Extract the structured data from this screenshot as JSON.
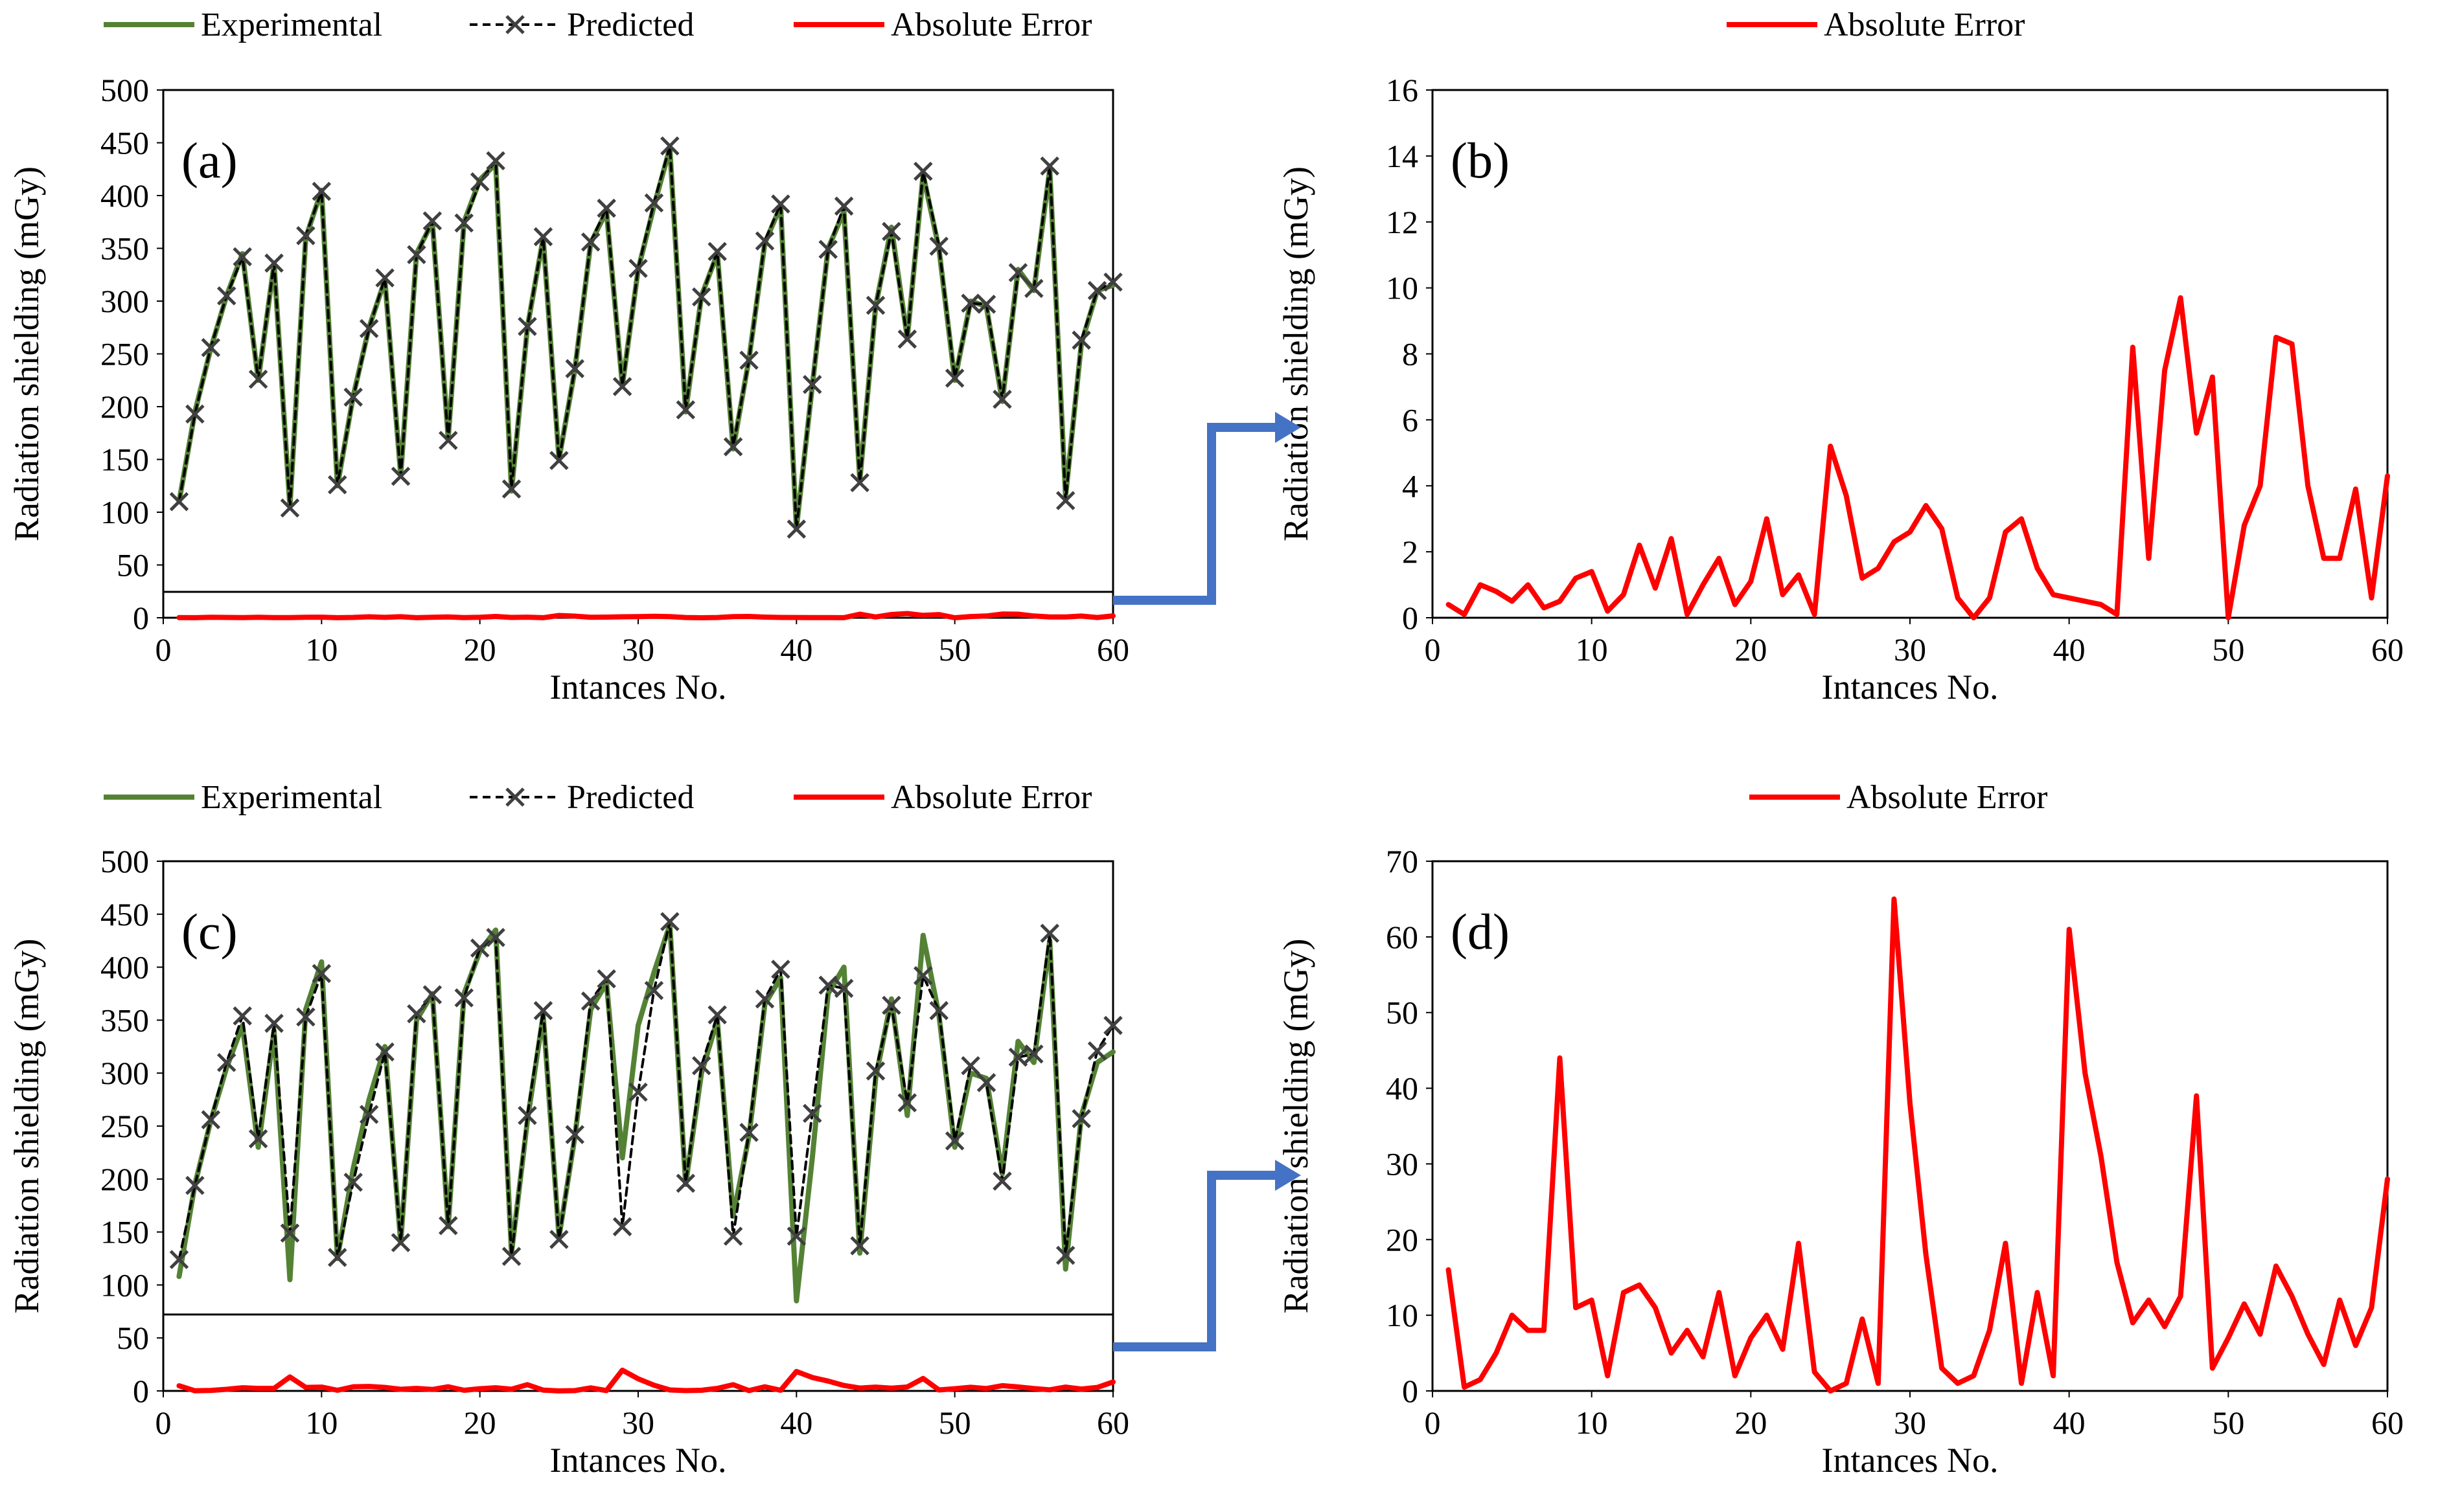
{
  "colors": {
    "experimental": "#548235",
    "predicted": "#000000",
    "predicted_marker": "#404040",
    "error": "#ff0000",
    "connector": "#4472c4"
  },
  "chart_data": [
    {
      "id": "a",
      "type": "line",
      "panel_label": "(a)",
      "xlabel": "Intances No.",
      "ylabel": "Radiation shielding (mGy)",
      "xlim": [
        0,
        60
      ],
      "ylim": [
        0,
        500
      ],
      "x_ticks": [
        "0",
        "10",
        "20",
        "30",
        "40",
        "50",
        "60"
      ],
      "y_ticks": [
        "0",
        "50",
        "100",
        "150",
        "200",
        "250",
        "300",
        "350",
        "400",
        "450",
        "500"
      ],
      "legend": [
        "Experimental",
        "Predicted",
        "Absolute Error"
      ],
      "x": [
        1,
        2,
        3,
        4,
        5,
        6,
        7,
        8,
        9,
        10,
        11,
        12,
        13,
        14,
        15,
        16,
        17,
        18,
        19,
        20,
        21,
        22,
        23,
        24,
        25,
        26,
        27,
        28,
        29,
        30,
        31,
        32,
        33,
        34,
        35,
        36,
        37,
        38,
        39,
        40,
        41,
        42,
        43,
        44,
        45,
        46,
        47,
        48,
        49,
        50,
        51,
        52,
        53,
        54,
        55,
        56,
        57,
        58,
        59,
        60
      ],
      "series": [
        {
          "name": "Experimental",
          "style": "solid",
          "values": [
            110,
            195,
            255,
            305,
            345,
            225,
            335,
            105,
            360,
            405,
            125,
            210,
            275,
            320,
            135,
            345,
            375,
            170,
            375,
            415,
            430,
            120,
            275,
            360,
            150,
            235,
            355,
            385,
            220,
            330,
            390,
            445,
            195,
            305,
            345,
            160,
            245,
            355,
            390,
            85,
            220,
            350,
            385,
            130,
            295,
            370,
            265,
            420,
            350,
            225,
            300,
            295,
            205,
            330,
            310,
            425,
            115,
            260,
            310,
            315
          ]
        },
        {
          "name": "Predicted",
          "style": "dashed-x",
          "values": [
            110,
            193,
            256,
            305,
            342,
            226,
            336,
            104,
            362,
            404,
            126,
            209,
            274,
            322,
            134,
            344,
            376,
            168,
            374,
            413,
            433,
            122,
            276,
            361,
            149,
            236,
            356,
            388,
            219,
            331,
            393,
            447,
            197,
            304,
            347,
            162,
            244,
            357,
            392,
            84,
            221,
            349,
            390,
            128,
            296,
            366,
            264,
            423,
            352,
            227,
            298,
            297,
            207,
            327,
            312,
            428,
            111,
            263,
            310,
            318
          ]
        },
        {
          "name": "Absolute Error",
          "style": "solid",
          "values": [
            0.4,
            0.1,
            1.0,
            0.8,
            0.5,
            1.0,
            0.3,
            0.5,
            1.2,
            1.4,
            0.2,
            0.7,
            2.2,
            0.9,
            2.4,
            0.1,
            1.0,
            1.8,
            0.4,
            1.1,
            3.0,
            0.7,
            1.3,
            0.1,
            5.2,
            3.7,
            1.2,
            1.5,
            2.3,
            2.6,
            3.4,
            2.7,
            0.6,
            0.0,
            0.6,
            2.6,
            3.0,
            1.5,
            0.7,
            0.6,
            0.5,
            0.4,
            0.1,
            8.2,
            1.8,
            7.5,
            9.7,
            5.6,
            7.3,
            0.0,
            2.8,
            4.0,
            8.5,
            8.3,
            4.0,
            1.8,
            1.8,
            3.9,
            0.6,
            4.3
          ]
        }
      ],
      "error_axis_range": [
        0,
        60
      ]
    },
    {
      "id": "b",
      "type": "line",
      "panel_label": "(b)",
      "xlabel": "Intances No.",
      "ylabel": "Radiation shielding (mGy)",
      "xlim": [
        0,
        60
      ],
      "ylim": [
        0,
        16
      ],
      "x_ticks": [
        "0",
        "10",
        "20",
        "30",
        "40",
        "50",
        "60"
      ],
      "y_ticks": [
        "0",
        "2",
        "4",
        "6",
        "8",
        "10",
        "12",
        "14",
        "16"
      ],
      "legend": [
        "Absolute Error"
      ],
      "x": [
        1,
        2,
        3,
        4,
        5,
        6,
        7,
        8,
        9,
        10,
        11,
        12,
        13,
        14,
        15,
        16,
        17,
        18,
        19,
        20,
        21,
        22,
        23,
        24,
        25,
        26,
        27,
        28,
        29,
        30,
        31,
        32,
        33,
        34,
        35,
        36,
        37,
        38,
        39,
        40,
        41,
        42,
        43,
        44,
        45,
        46,
        47,
        48,
        49,
        50,
        51,
        52,
        53,
        54,
        55,
        56,
        57,
        58,
        59,
        60
      ],
      "series": [
        {
          "name": "Absolute Error",
          "style": "solid",
          "values": [
            0.4,
            0.1,
            1.0,
            0.8,
            0.5,
            1.0,
            0.3,
            0.5,
            1.2,
            1.4,
            0.2,
            0.7,
            2.2,
            0.9,
            2.4,
            0.1,
            1.0,
            1.8,
            0.4,
            1.1,
            3.0,
            0.7,
            1.3,
            0.1,
            5.2,
            3.7,
            1.2,
            1.5,
            2.3,
            2.6,
            3.4,
            2.7,
            0.6,
            0.0,
            0.6,
            2.6,
            3.0,
            1.5,
            0.7,
            0.6,
            0.5,
            0.4,
            0.1,
            8.2,
            1.8,
            7.5,
            9.7,
            5.6,
            7.3,
            0.0,
            2.8,
            4.0,
            8.5,
            8.3,
            4.0,
            1.8,
            1.8,
            3.9,
            0.6,
            4.3
          ]
        }
      ]
    },
    {
      "id": "c",
      "type": "line",
      "panel_label": "(c)",
      "xlabel": "Intances No.",
      "ylabel": "Radiation shielding (mGy)",
      "xlim": [
        0,
        60
      ],
      "ylim": [
        0,
        500
      ],
      "x_ticks": [
        "0",
        "10",
        "20",
        "30",
        "40",
        "50",
        "60"
      ],
      "y_ticks": [
        "0",
        "50",
        "100",
        "150",
        "200",
        "250",
        "300",
        "350",
        "400",
        "450",
        "500"
      ],
      "legend": [
        "Experimental",
        "Predicted",
        "Absolute Error"
      ],
      "x": [
        1,
        2,
        3,
        4,
        5,
        6,
        7,
        8,
        9,
        10,
        11,
        12,
        13,
        14,
        15,
        16,
        17,
        18,
        19,
        20,
        21,
        22,
        23,
        24,
        25,
        26,
        27,
        28,
        29,
        30,
        31,
        32,
        33,
        34,
        35,
        36,
        37,
        38,
        39,
        40,
        41,
        42,
        43,
        44,
        45,
        46,
        47,
        48,
        49,
        50,
        51,
        52,
        53,
        54,
        55,
        56,
        57,
        58,
        59,
        60
      ],
      "series": [
        {
          "name": "Experimental",
          "style": "solid",
          "values": [
            108,
            195,
            255,
            305,
            345,
            230,
            340,
            105,
            360,
            405,
            125,
            210,
            275,
            325,
            140,
            350,
            375,
            155,
            375,
            415,
            435,
            130,
            255,
            355,
            145,
            240,
            360,
            385,
            220,
            345,
            395,
            440,
            195,
            300,
            350,
            165,
            240,
            365,
            390,
            85,
            220,
            375,
            400,
            130,
            295,
            370,
            260,
            430,
            355,
            230,
            300,
            295,
            205,
            330,
            310,
            425,
            115,
            260,
            310,
            320
          ]
        },
        {
          "name": "Predicted",
          "style": "dashed-x",
          "values": [
            124,
            194,
            256,
            310,
            354,
            238,
            347,
            149,
            353,
            394,
            126,
            197,
            261,
            320,
            140,
            356,
            374,
            156,
            371,
            418,
            428,
            127,
            260,
            359,
            143,
            242,
            368,
            389,
            155,
            282,
            378,
            443,
            196,
            307,
            355,
            146,
            244,
            370,
            398,
            146,
            262,
            383,
            380,
            137,
            302,
            364,
            272,
            392,
            359,
            236,
            307,
            291,
            198,
            315,
            318,
            432,
            128,
            257,
            321,
            345
          ]
        },
        {
          "name": "Absolute Error",
          "style": "solid",
          "values": [
            16,
            0.5,
            1.5,
            5,
            10,
            8,
            8,
            44,
            11,
            12,
            2,
            13,
            14,
            11,
            5,
            8,
            4.5,
            13,
            2,
            7,
            10,
            5.5,
            19.5,
            2.5,
            0,
            1,
            9.5,
            1,
            65,
            38,
            18,
            3,
            1,
            2,
            8,
            19.5,
            1,
            13,
            2,
            61,
            42,
            31,
            17,
            9,
            12,
            8.5,
            12.5,
            39,
            3,
            7,
            11.5,
            7.5,
            16.5,
            12.5,
            7.5,
            3.5,
            12,
            6,
            11,
            28
          ]
        }
      ],
      "error_axis_range": [
        0,
        240
      ]
    },
    {
      "id": "d",
      "type": "line",
      "panel_label": "(d)",
      "xlabel": "Intances No.",
      "ylabel": "Radiation shielding (mGy)",
      "xlim": [
        0,
        60
      ],
      "ylim": [
        0,
        70
      ],
      "x_ticks": [
        "0",
        "10",
        "20",
        "30",
        "40",
        "50",
        "60"
      ],
      "y_ticks": [
        "0",
        "10",
        "20",
        "30",
        "40",
        "50",
        "60",
        "70"
      ],
      "legend": [
        "Absolute Error"
      ],
      "x": [
        1,
        2,
        3,
        4,
        5,
        6,
        7,
        8,
        9,
        10,
        11,
        12,
        13,
        14,
        15,
        16,
        17,
        18,
        19,
        20,
        21,
        22,
        23,
        24,
        25,
        26,
        27,
        28,
        29,
        30,
        31,
        32,
        33,
        34,
        35,
        36,
        37,
        38,
        39,
        40,
        41,
        42,
        43,
        44,
        45,
        46,
        47,
        48,
        49,
        50,
        51,
        52,
        53,
        54,
        55,
        56,
        57,
        58,
        59,
        60
      ],
      "series": [
        {
          "name": "Absolute Error",
          "style": "solid",
          "values": [
            16,
            0.5,
            1.5,
            5,
            10,
            8,
            8,
            44,
            11,
            12,
            2,
            13,
            14,
            11,
            5,
            8,
            4.5,
            13,
            2,
            7,
            10,
            5.5,
            19.5,
            2.5,
            0,
            1,
            9.5,
            1,
            65,
            38,
            18,
            3,
            1,
            2,
            8,
            19.5,
            1,
            13,
            2,
            61,
            42,
            31,
            17,
            9,
            12,
            8.5,
            12.5,
            39,
            3,
            7,
            11.5,
            7.5,
            16.5,
            12.5,
            7.5,
            3.5,
            12,
            6,
            11,
            28
          ]
        }
      ]
    }
  ]
}
